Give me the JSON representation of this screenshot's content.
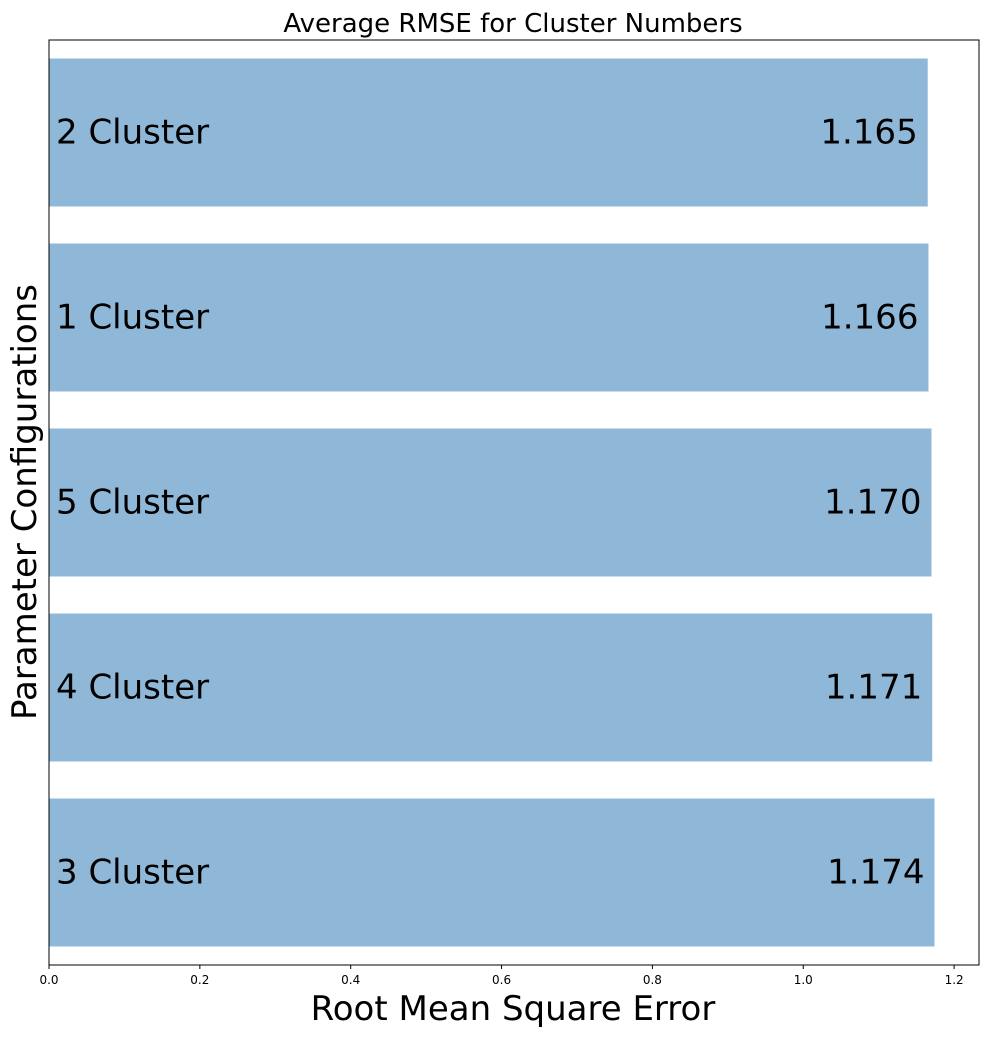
{
  "chart_data": {
    "type": "bar",
    "orientation": "horizontal",
    "title": "Average RMSE for Cluster Numbers",
    "xlabel": "Root Mean Square Error",
    "ylabel": "Parameter Configurations",
    "categories": [
      "2 Cluster",
      "1 Cluster",
      "5 Cluster",
      "4 Cluster",
      "3 Cluster"
    ],
    "values": [
      1.165,
      1.166,
      1.17,
      1.171,
      1.174
    ],
    "value_labels": [
      "1.165",
      "1.166",
      "1.170",
      "1.171",
      "1.174"
    ],
    "xlim": [
      0,
      1.233
    ],
    "xticks": [
      0.0,
      0.2,
      0.4,
      0.6,
      0.8,
      1.0,
      1.2
    ],
    "xtick_labels": [
      "0.0",
      "0.2",
      "0.4",
      "0.6",
      "0.8",
      "1.0",
      "1.2"
    ],
    "yticks_visible": false,
    "grid": false,
    "legend": "none",
    "bar_color": "#8fb8d8",
    "text_color": "#000000"
  }
}
